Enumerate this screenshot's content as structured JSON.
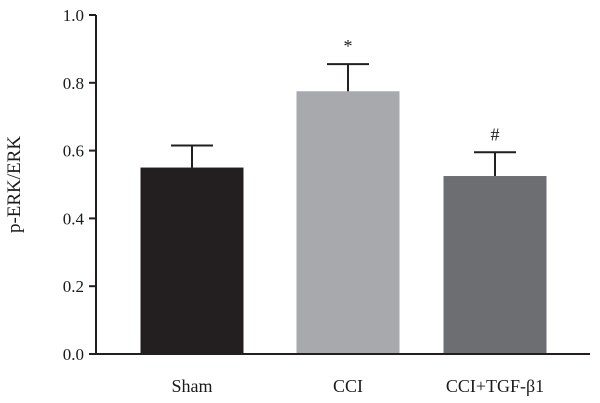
{
  "chart_data": {
    "type": "bar",
    "ylabel": "p-ERK/ERK",
    "ylim": [
      0,
      1.0
    ],
    "yticks": [
      "0.0",
      "0.2",
      "0.4",
      "0.6",
      "0.8",
      "1.0"
    ],
    "categories": [
      "Sham",
      "CCI",
      "CCI+TGF-β1"
    ],
    "values": [
      0.55,
      0.775,
      0.525
    ],
    "errors": [
      0.065,
      0.08,
      0.07
    ],
    "annotations": [
      "",
      "*",
      "#"
    ],
    "colors": [
      "#231f20",
      "#a7a9ac",
      "#6d6e71"
    ],
    "grid": false
  }
}
